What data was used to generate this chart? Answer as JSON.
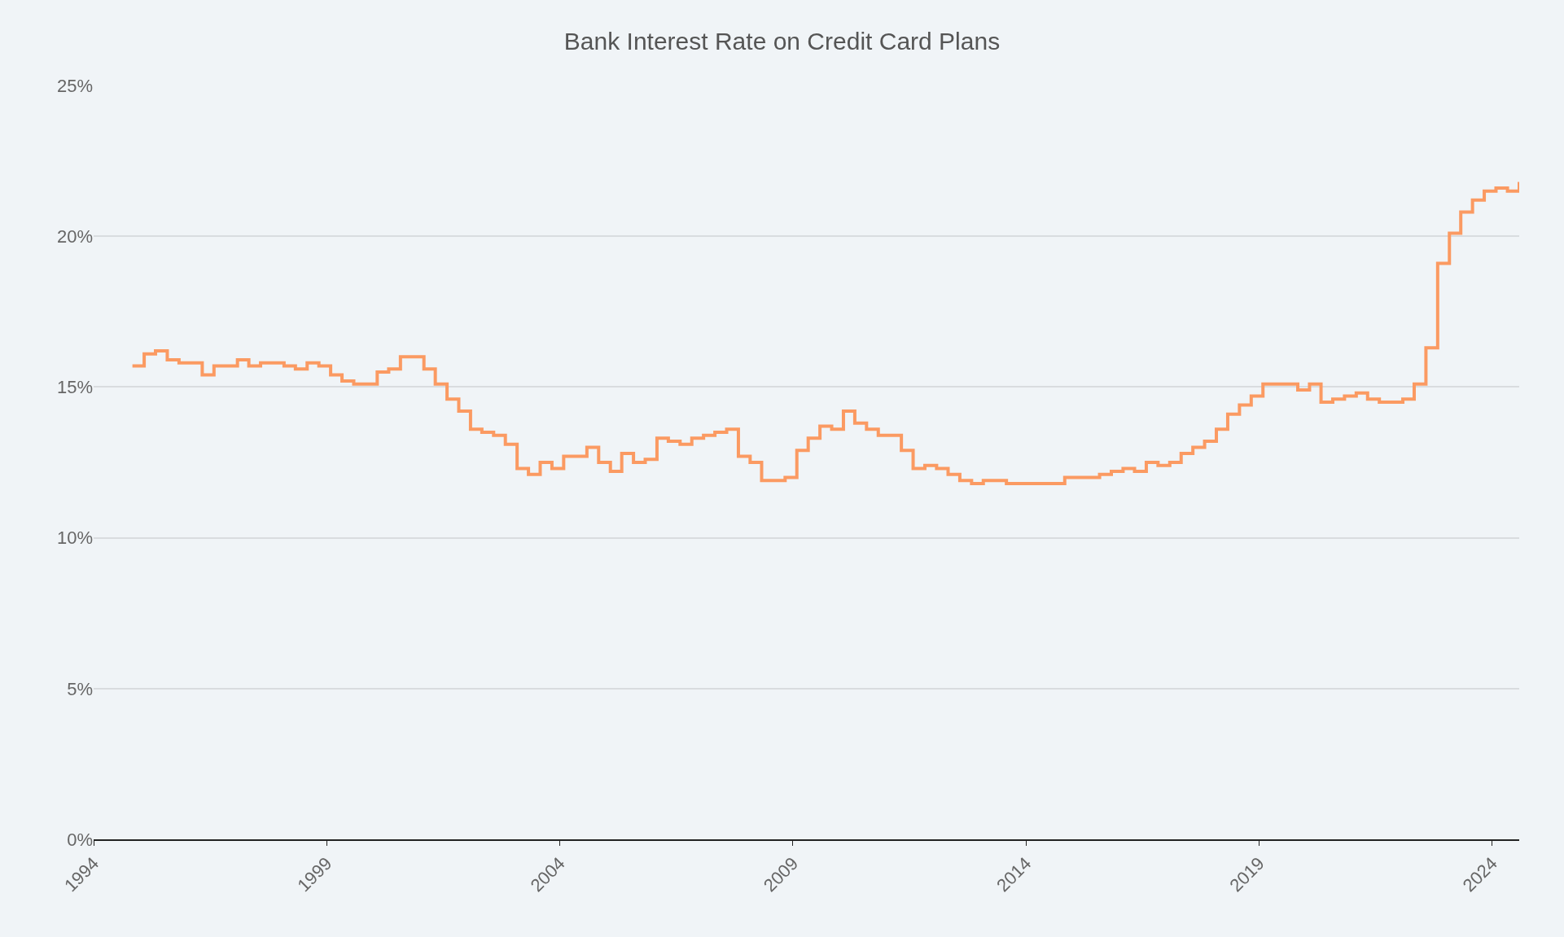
{
  "chart_data": {
    "type": "step",
    "title": "Bank Interest Rate on Credit Card Plans",
    "x": [
      "1994-11",
      "1995-02",
      "1995-05",
      "1995-08",
      "1995-11",
      "1996-05",
      "1996-08",
      "1997-02",
      "1997-05",
      "1997-08",
      "1998-02",
      "1998-05",
      "1998-08",
      "1998-11",
      "1999-02",
      "1999-05",
      "1999-08",
      "2000-02",
      "2000-05",
      "2000-08",
      "2001-02",
      "2001-05",
      "2001-08",
      "2001-11",
      "2002-02",
      "2002-05",
      "2002-08",
      "2002-11",
      "2003-02",
      "2003-05",
      "2003-08",
      "2003-11",
      "2004-02",
      "2004-08",
      "2004-11",
      "2005-02",
      "2005-05",
      "2005-08",
      "2005-11",
      "2006-02",
      "2006-05",
      "2006-08",
      "2006-11",
      "2007-02",
      "2007-05",
      "2007-08",
      "2007-11",
      "2008-02",
      "2008-05",
      "2008-08",
      "2008-11",
      "2009-02",
      "2009-05",
      "2009-08",
      "2009-11",
      "2010-02",
      "2010-05",
      "2010-08",
      "2010-11",
      "2011-05",
      "2011-08",
      "2011-11",
      "2012-02",
      "2012-05",
      "2012-08",
      "2012-11",
      "2013-02",
      "2013-08",
      "2013-11",
      "2014-02",
      "2014-11",
      "2015-05",
      "2015-08",
      "2015-11",
      "2016-02",
      "2016-05",
      "2016-08",
      "2016-11",
      "2017-02",
      "2017-05",
      "2017-08",
      "2017-11",
      "2018-02",
      "2018-05",
      "2018-08",
      "2018-11",
      "2019-02",
      "2019-05",
      "2019-11",
      "2020-02",
      "2020-05",
      "2020-08",
      "2020-11",
      "2021-02",
      "2021-05",
      "2021-08",
      "2022-02",
      "2022-05",
      "2022-08",
      "2022-11",
      "2023-02",
      "2023-05",
      "2023-08",
      "2023-11",
      "2024-02",
      "2024-05",
      "2024-08"
    ],
    "series": [
      {
        "color": "#fb9a62",
        "values": [
          15.7,
          16.1,
          16.2,
          15.9,
          15.8,
          15.4,
          15.7,
          15.9,
          15.7,
          15.8,
          15.7,
          15.6,
          15.8,
          15.7,
          15.4,
          15.2,
          15.1,
          15.5,
          15.6,
          16.0,
          15.6,
          15.1,
          14.6,
          14.2,
          13.6,
          13.5,
          13.4,
          13.1,
          12.3,
          12.1,
          12.5,
          12.3,
          12.7,
          13.0,
          12.5,
          12.2,
          12.8,
          12.5,
          12.6,
          13.3,
          13.2,
          13.1,
          13.3,
          13.4,
          13.5,
          13.6,
          12.7,
          12.5,
          11.9,
          11.9,
          12.0,
          12.9,
          13.3,
          13.7,
          13.6,
          14.2,
          13.8,
          13.6,
          13.4,
          12.9,
          12.3,
          12.4,
          12.3,
          12.1,
          11.9,
          11.8,
          11.9,
          11.8,
          11.8,
          11.8,
          12.0,
          12.0,
          12.1,
          12.2,
          12.3,
          12.2,
          12.5,
          12.4,
          12.5,
          12.8,
          13.0,
          13.2,
          13.6,
          14.1,
          14.4,
          14.7,
          15.1,
          15.1,
          14.9,
          15.1,
          14.5,
          14.6,
          14.7,
          14.8,
          14.6,
          14.5,
          14.6,
          15.1,
          16.3,
          19.1,
          20.1,
          20.8,
          21.2,
          21.5,
          21.6,
          21.5,
          21.8
        ]
      }
    ],
    "xlim": [
      "1994-01",
      "2024-08"
    ],
    "xticks": [
      {
        "value": "1994",
        "label": "1994"
      },
      {
        "value": "1999",
        "label": "1999"
      },
      {
        "value": "2004",
        "label": "2004"
      },
      {
        "value": "2009",
        "label": "2009"
      },
      {
        "value": "2014",
        "label": "2014"
      },
      {
        "value": "2019",
        "label": "2019"
      },
      {
        "value": "2024",
        "label": "2024"
      }
    ],
    "ylim": [
      0,
      25
    ],
    "yticks": [
      {
        "value": 0,
        "label": "0%"
      },
      {
        "value": 5,
        "label": "5%"
      },
      {
        "value": 10,
        "label": "10%"
      },
      {
        "value": 15,
        "label": "15%"
      },
      {
        "value": 20,
        "label": "20%"
      },
      {
        "value": 25,
        "label": "25%"
      }
    ],
    "grid": "y",
    "marker": "none",
    "line_style": "solid"
  }
}
